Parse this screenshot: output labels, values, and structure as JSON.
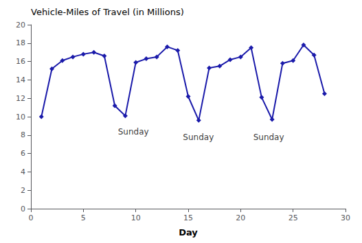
{
  "chart_data": {
    "type": "line",
    "title": "Vehicle-Miles of Travel (in Millions)",
    "xlabel": "Day",
    "x": [
      1,
      2,
      3,
      4,
      5,
      6,
      7,
      8,
      9,
      10,
      11,
      12,
      13,
      14,
      15,
      16,
      17,
      18,
      19,
      20,
      21,
      22,
      23,
      24,
      25,
      26,
      27,
      28
    ],
    "values": [
      10.0,
      15.2,
      16.1,
      16.5,
      16.8,
      17.0,
      16.6,
      11.2,
      10.1,
      15.9,
      16.3,
      16.5,
      17.6,
      17.2,
      12.2,
      9.6,
      15.3,
      15.5,
      16.2,
      16.5,
      17.5,
      12.1,
      9.7,
      15.8,
      16.1,
      17.8,
      16.7,
      12.5
    ],
    "color": "#1a1aaa",
    "marker": "diamond",
    "xlim": [
      0,
      30
    ],
    "ylim": [
      0,
      20
    ],
    "xticks": [
      0,
      5,
      10,
      15,
      20,
      25,
      30
    ],
    "yticks": [
      0,
      2,
      4,
      6,
      8,
      10,
      12,
      14,
      16,
      18,
      20
    ],
    "grid": false,
    "annotations": [
      {
        "text": "Sunday",
        "x": 8.3,
        "y": 8.8
      },
      {
        "text": "Sunday",
        "x": 14.5,
        "y": 8.2
      },
      {
        "text": "Sunday",
        "x": 21.2,
        "y": 8.2
      }
    ]
  }
}
